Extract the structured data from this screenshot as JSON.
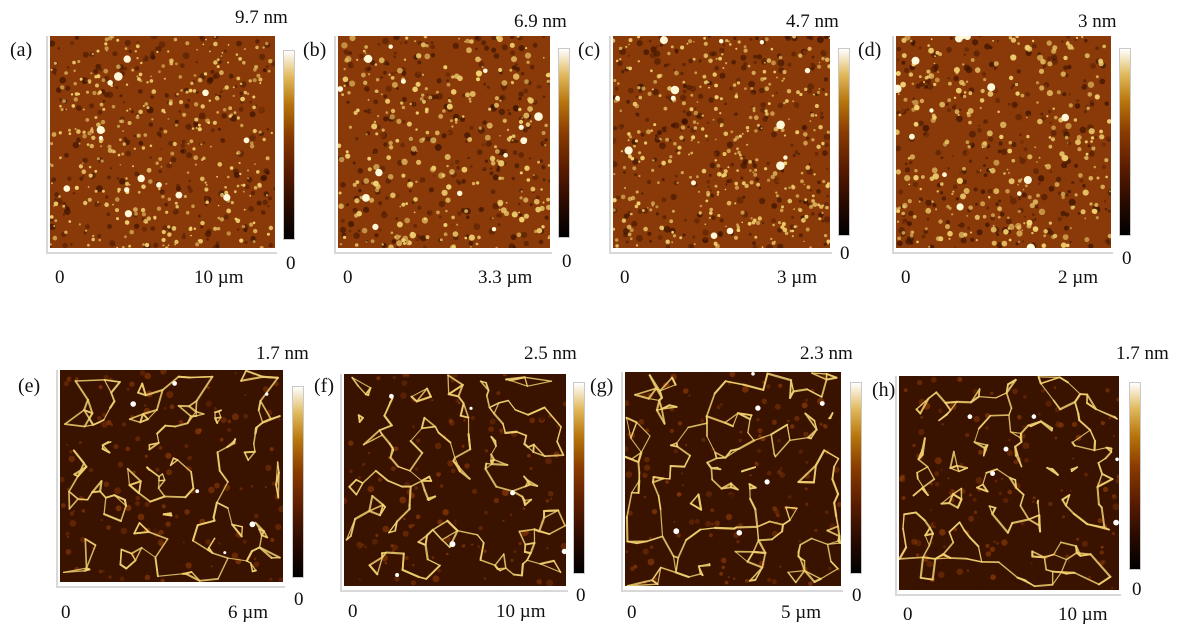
{
  "panels": [
    {
      "letter": "(a)",
      "max_height": "9.7 nm",
      "origin": "0",
      "scan_size": "10 µm",
      "min_height": "0",
      "texture": "dots"
    },
    {
      "letter": "(b)",
      "max_height": "6.9 nm",
      "origin": "0",
      "scan_size": "3.3 µm",
      "min_height": "0",
      "texture": "grainy"
    },
    {
      "letter": "(c)",
      "max_height": "4.7 nm",
      "origin": "0",
      "scan_size": "3 µm",
      "min_height": "0",
      "texture": "dots"
    },
    {
      "letter": "(d)",
      "max_height": "3 nm",
      "origin": "0",
      "scan_size": "2 µm",
      "min_height": "0",
      "texture": "grainy"
    },
    {
      "letter": "(e)",
      "max_height": "1.7 nm",
      "origin": "0",
      "scan_size": "6 µm",
      "min_height": "0",
      "texture": "network"
    },
    {
      "letter": "(f)",
      "max_height": "2.5 nm",
      "origin": "0",
      "scan_size": "10 µm",
      "min_height": "0",
      "texture": "network"
    },
    {
      "letter": "(g)",
      "max_height": "2.3 nm",
      "origin": "0",
      "scan_size": "5 µm",
      "min_height": "0",
      "texture": "network"
    },
    {
      "letter": "(h)",
      "max_height": "1.7 nm",
      "origin": "0",
      "scan_size": "10 µm",
      "min_height": "0",
      "texture": "network"
    }
  ],
  "colors": {
    "afm_dark": "#3a1200",
    "afm_mid": "#8a3a08",
    "afm_light": "#f0d070"
  }
}
